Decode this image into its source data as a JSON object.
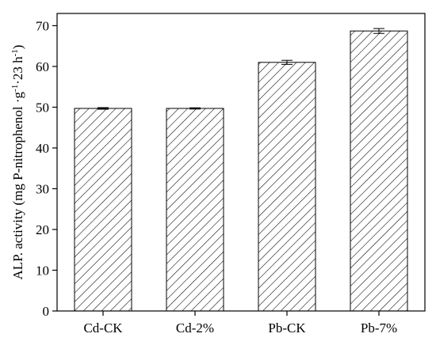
{
  "chart_data": {
    "type": "bar",
    "categories": [
      "Cd-CK",
      "Cd-2%",
      "Pb-CK",
      "Pb-7%"
    ],
    "values": [
      49.7,
      49.7,
      61.0,
      68.7
    ],
    "errors": [
      0.2,
      0.15,
      0.5,
      0.6
    ],
    "title": "",
    "xlabel": "",
    "ylabel_parts": {
      "main": "ALP. activity (mg P-nitrophenol ·g",
      "sup1": "-1",
      "mid": "·23 h",
      "sup2": "-1",
      "end": ")"
    },
    "ylim": [
      0,
      73
    ],
    "yticks": [
      0,
      10,
      20,
      30,
      40,
      50,
      60,
      70
    ],
    "bar_fill": "hatched",
    "hatch_color": "#000000",
    "grid": false,
    "legend": "none"
  }
}
